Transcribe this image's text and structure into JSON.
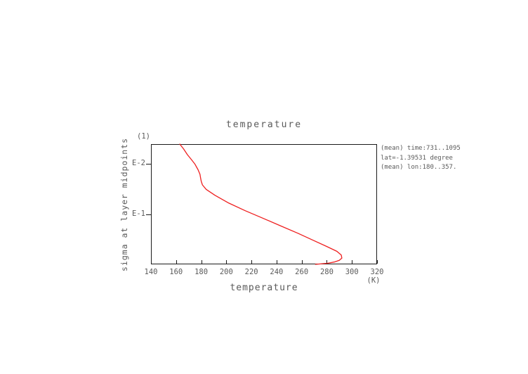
{
  "title": "temperature",
  "y_axis": {
    "unit_label": "(1)",
    "axis_label": "sigma at layer midpoints",
    "ticks": [
      {
        "label": "E-2",
        "value": 0.01
      },
      {
        "label": "E-1",
        "value": 0.1
      }
    ]
  },
  "x_axis": {
    "unit_label": "(K)",
    "axis_label": "temperature",
    "ticks": [
      140,
      160,
      180,
      200,
      220,
      240,
      260,
      280,
      300,
      320
    ]
  },
  "annotations": [
    "(mean) time:731..1095",
    "lat=-1.39531 degree",
    "(mean) lon:180..357."
  ],
  "colors": {
    "curve": "#ee1f1f",
    "axis": "#1a1a1a",
    "text": "#5a5a5a",
    "background": "#ffffff"
  },
  "chart_data": {
    "type": "line",
    "title": "temperature",
    "xlabel": "temperature (K)",
    "ylabel": "sigma at layer midpoints (1)",
    "xlim": [
      140,
      320
    ],
    "ylim": [
      0.004,
      1.0
    ],
    "y_scale": "log",
    "grid": false,
    "legend": "none",
    "series": [
      {
        "name": "temperature profile",
        "x_temperature_K": [
          163,
          166,
          169,
          172,
          175,
          177.5,
          179,
          179.5,
          180,
          181,
          184,
          191,
          202,
          215,
          229,
          243,
          257,
          269,
          280,
          288,
          291.5,
          292,
          290,
          286,
          281,
          275,
          271
        ],
        "y_sigma": [
          0.004,
          0.005,
          0.0065,
          0.008,
          0.01,
          0.013,
          0.016,
          0.019,
          0.022,
          0.026,
          0.032,
          0.042,
          0.06,
          0.085,
          0.12,
          0.17,
          0.24,
          0.33,
          0.44,
          0.55,
          0.65,
          0.75,
          0.83,
          0.9,
          0.95,
          0.98,
          1.0
        ]
      }
    ]
  }
}
